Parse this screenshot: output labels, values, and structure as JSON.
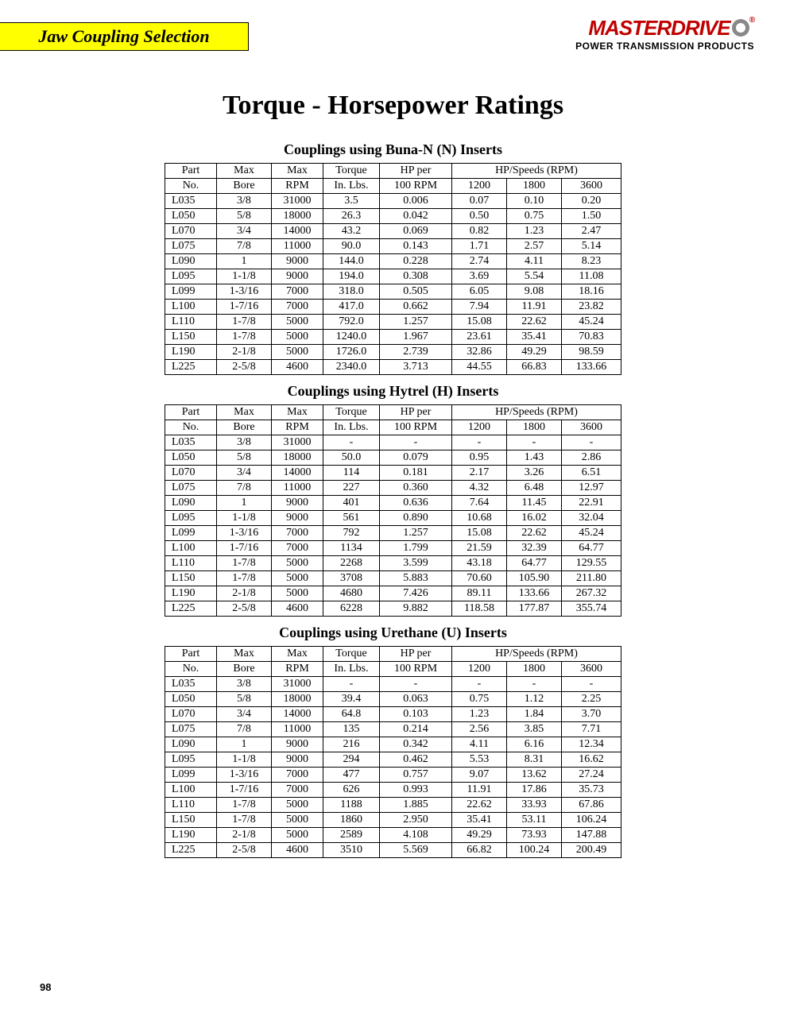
{
  "header_label": "Jaw Coupling Selection",
  "logo": {
    "brand": "MASTERDRIVE",
    "subtitle": "POWER TRANSMISSION PRODUCTS",
    "reg": "®"
  },
  "main_title": "Torque - Horsepower Ratings",
  "page_number": "98",
  "column_headers": {
    "part_top": "Part",
    "part_bot": "No.",
    "bore_top": "Max",
    "bore_bot": "Bore",
    "rpm_top": "Max",
    "rpm_bot": "RPM",
    "torque_top": "Torque",
    "torque_bot": "In. Lbs.",
    "hp100_top": "HP per",
    "hp100_bot": "100 RPM",
    "hpspeeds": "HP/Speeds (RPM)",
    "s1200": "1200",
    "s1800": "1800",
    "s3600": "3600"
  },
  "tables": [
    {
      "title": "Couplings using Buna-N (N) Inserts",
      "rows": [
        [
          "L035",
          "3/8",
          "31000",
          "3.5",
          "0.006",
          "0.07",
          "0.10",
          "0.20"
        ],
        [
          "L050",
          "5/8",
          "18000",
          "26.3",
          "0.042",
          "0.50",
          "0.75",
          "1.50"
        ],
        [
          "L070",
          "3/4",
          "14000",
          "43.2",
          "0.069",
          "0.82",
          "1.23",
          "2.47"
        ],
        [
          "L075",
          "7/8",
          "11000",
          "90.0",
          "0.143",
          "1.71",
          "2.57",
          "5.14"
        ],
        [
          "L090",
          "1",
          "9000",
          "144.0",
          "0.228",
          "2.74",
          "4.11",
          "8.23"
        ],
        [
          "L095",
          "1-1/8",
          "9000",
          "194.0",
          "0.308",
          "3.69",
          "5.54",
          "11.08"
        ],
        [
          "L099",
          "1-3/16",
          "7000",
          "318.0",
          "0.505",
          "6.05",
          "9.08",
          "18.16"
        ],
        [
          "L100",
          "1-7/16",
          "7000",
          "417.0",
          "0.662",
          "7.94",
          "11.91",
          "23.82"
        ],
        [
          "L110",
          "1-7/8",
          "5000",
          "792.0",
          "1.257",
          "15.08",
          "22.62",
          "45.24"
        ],
        [
          "L150",
          "1-7/8",
          "5000",
          "1240.0",
          "1.967",
          "23.61",
          "35.41",
          "70.83"
        ],
        [
          "L190",
          "2-1/8",
          "5000",
          "1726.0",
          "2.739",
          "32.86",
          "49.29",
          "98.59"
        ],
        [
          "L225",
          "2-5/8",
          "4600",
          "2340.0",
          "3.713",
          "44.55",
          "66.83",
          "133.66"
        ]
      ]
    },
    {
      "title": "Couplings using Hytrel (H) Inserts",
      "rows": [
        [
          "L035",
          "3/8",
          "31000",
          "-",
          "-",
          "-",
          "-",
          "-"
        ],
        [
          "L050",
          "5/8",
          "18000",
          "50.0",
          "0.079",
          "0.95",
          "1.43",
          "2.86"
        ],
        [
          "L070",
          "3/4",
          "14000",
          "114",
          "0.181",
          "2.17",
          "3.26",
          "6.51"
        ],
        [
          "L075",
          "7/8",
          "11000",
          "227",
          "0.360",
          "4.32",
          "6.48",
          "12.97"
        ],
        [
          "L090",
          "1",
          "9000",
          "401",
          "0.636",
          "7.64",
          "11.45",
          "22.91"
        ],
        [
          "L095",
          "1-1/8",
          "9000",
          "561",
          "0.890",
          "10.68",
          "16.02",
          "32.04"
        ],
        [
          "L099",
          "1-3/16",
          "7000",
          "792",
          "1.257",
          "15.08",
          "22.62",
          "45.24"
        ],
        [
          "L100",
          "1-7/16",
          "7000",
          "1134",
          "1.799",
          "21.59",
          "32.39",
          "64.77"
        ],
        [
          "L110",
          "1-7/8",
          "5000",
          "2268",
          "3.599",
          "43.18",
          "64.77",
          "129.55"
        ],
        [
          "L150",
          "1-7/8",
          "5000",
          "3708",
          "5.883",
          "70.60",
          "105.90",
          "211.80"
        ],
        [
          "L190",
          "2-1/8",
          "5000",
          "4680",
          "7.426",
          "89.11",
          "133.66",
          "267.32"
        ],
        [
          "L225",
          "2-5/8",
          "4600",
          "6228",
          "9.882",
          "118.58",
          "177.87",
          "355.74"
        ]
      ]
    },
    {
      "title": "Couplings using Urethane (U) Inserts",
      "rows": [
        [
          "L035",
          "3/8",
          "31000",
          "-",
          "-",
          "-",
          "-",
          "-"
        ],
        [
          "L050",
          "5/8",
          "18000",
          "39.4",
          "0.063",
          "0.75",
          "1.12",
          "2.25"
        ],
        [
          "L070",
          "3/4",
          "14000",
          "64.8",
          "0.103",
          "1.23",
          "1.84",
          "3.70"
        ],
        [
          "L075",
          "7/8",
          "11000",
          "135",
          "0.214",
          "2.56",
          "3.85",
          "7.71"
        ],
        [
          "L090",
          "1",
          "9000",
          "216",
          "0.342",
          "4.11",
          "6.16",
          "12.34"
        ],
        [
          "L095",
          "1-1/8",
          "9000",
          "294",
          "0.462",
          "5.53",
          "8.31",
          "16.62"
        ],
        [
          "L099",
          "1-3/16",
          "7000",
          "477",
          "0.757",
          "9.07",
          "13.62",
          "27.24"
        ],
        [
          "L100",
          "1-7/16",
          "7000",
          "626",
          "0.993",
          "11.91",
          "17.86",
          "35.73"
        ],
        [
          "L110",
          "1-7/8",
          "5000",
          "1188",
          "1.885",
          "22.62",
          "33.93",
          "67.86"
        ],
        [
          "L150",
          "1-7/8",
          "5000",
          "1860",
          "2.950",
          "35.41",
          "53.11",
          "106.24"
        ],
        [
          "L190",
          "2-1/8",
          "5000",
          "2589",
          "4.108",
          "49.29",
          "73.93",
          "147.88"
        ],
        [
          "L225",
          "2-5/8",
          "4600",
          "3510",
          "5.569",
          "66.82",
          "100.24",
          "200.49"
        ]
      ]
    }
  ]
}
